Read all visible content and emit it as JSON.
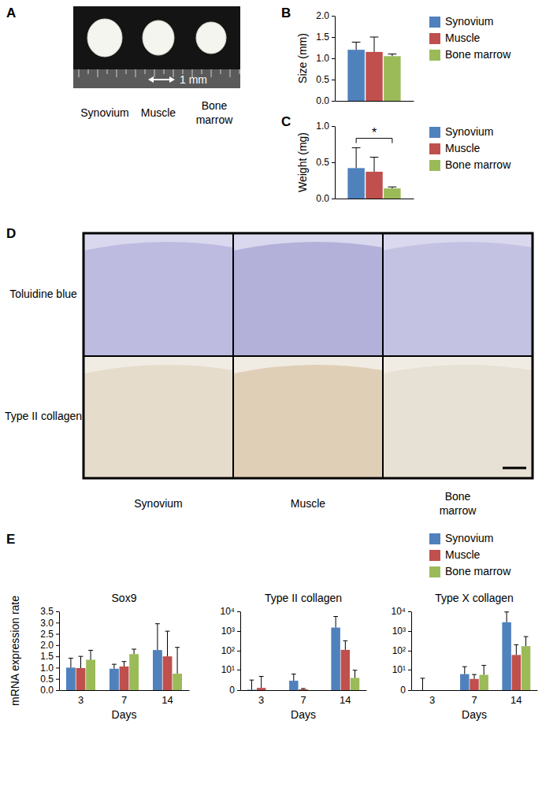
{
  "panel_a": {
    "label": "A",
    "scale_text": "1 mm",
    "samples": [
      "Synovium",
      "Muscle",
      "Bone marrow"
    ]
  },
  "panel_d": {
    "label": "D",
    "stains": [
      "Toluidine blue",
      "Type II collagen"
    ],
    "samples": [
      "Synovium",
      "Muscle",
      "Bone marrow"
    ]
  },
  "chart_data": [
    {
      "label": "B",
      "type": "bar",
      "y_label": "Size (mm)",
      "categories": [
        null
      ],
      "series": [
        {
          "name": "Synovium",
          "color": "#4f81bd",
          "values": [
            1.2
          ],
          "errors": [
            0.18
          ]
        },
        {
          "name": "Muscle",
          "color": "#c0504d",
          "values": [
            1.15
          ],
          "errors": [
            0.35
          ]
        },
        {
          "name": "Bone marrow",
          "color": "#9bbb59",
          "values": [
            1.05
          ],
          "errors": [
            0.05
          ]
        }
      ],
      "ylim": [
        0,
        2
      ],
      "yticks": [
        {
          "value": 0,
          "label": "0.0"
        },
        {
          "value": 0.5,
          "label": "0.5"
        },
        {
          "value": 1,
          "label": "1.0"
        },
        {
          "value": 1.5,
          "label": "1.5"
        },
        {
          "value": 2,
          "label": "2.0"
        }
      ],
      "legend": "right",
      "tick_labels": "y",
      "grid": false
    },
    {
      "label": "C",
      "type": "bar",
      "y_label": "Weight (mg)",
      "categories": [
        null
      ],
      "series": [
        {
          "name": "Synovium",
          "color": "#4f81bd",
          "values": [
            0.42
          ],
          "errors": [
            0.28
          ]
        },
        {
          "name": "Muscle",
          "color": "#c0504d",
          "values": [
            0.37
          ],
          "errors": [
            0.2
          ]
        },
        {
          "name": "Bone marrow",
          "color": "#9bbb59",
          "values": [
            0.14
          ],
          "errors": [
            0.02
          ]
        }
      ],
      "ylim": [
        0,
        1
      ],
      "yticks": [
        {
          "value": 0,
          "label": "0.0"
        },
        {
          "value": 0.5,
          "label": "0.5"
        },
        {
          "value": 1,
          "label": "1.0"
        }
      ],
      "annotations": [
        {
          "text": "*",
          "between": [
            "Synovium",
            "Bone marrow"
          ]
        }
      ],
      "legend": "right",
      "tick_labels": "y",
      "grid": false
    },
    {
      "label": "E",
      "type": "bar",
      "title": "Sox9",
      "y_label": "mRNA expression rate",
      "x_label": "Days",
      "categories": [
        "3",
        "7",
        "14"
      ],
      "series": [
        {
          "name": "Synovium",
          "color": "#4f81bd",
          "values": [
            1.0,
            0.95,
            1.78
          ],
          "errors": [
            0.42,
            0.2,
            1.17
          ]
        },
        {
          "name": "Muscle",
          "color": "#c0504d",
          "values": [
            0.98,
            1.05,
            1.5
          ],
          "errors": [
            0.52,
            0.22,
            1.12
          ]
        },
        {
          "name": "Bone marrow",
          "color": "#9bbb59",
          "values": [
            1.35,
            1.6,
            0.73
          ],
          "errors": [
            0.42,
            0.22,
            1.17
          ]
        }
      ],
      "ylim": [
        0,
        3.5
      ],
      "yticks": [
        {
          "value": 0,
          "label": "0.0"
        },
        {
          "value": 0.5,
          "label": "0.5"
        },
        {
          "value": 1,
          "label": "1.0"
        },
        {
          "value": 1.5,
          "label": "1.5"
        },
        {
          "value": 2,
          "label": "2.0"
        },
        {
          "value": 2.5,
          "label": "2.5"
        },
        {
          "value": 3,
          "label": "3.0"
        },
        {
          "value": 3.5,
          "label": "3.5"
        }
      ],
      "legend": "top right",
      "grid": false
    },
    {
      "type": "bar",
      "title": "Type II collagen",
      "x_label": "Days",
      "categories": [
        "3",
        "7",
        "14"
      ],
      "series": [
        {
          "name": "Synovium",
          "color": "#4f81bd",
          "values": [
            0.05,
            2,
            1500
          ],
          "errors": [
            2.2,
            3.5,
            4000
          ]
        },
        {
          "name": "Muscle",
          "color": "#c0504d",
          "values": [
            0.3,
            0.1,
            110
          ],
          "errors": [
            3.7,
            0.1,
            210
          ]
        },
        {
          "name": "Bone marrow",
          "color": "#9bbb59",
          "values": [
            0,
            0,
            3.2
          ],
          "errors": [
            0,
            0,
            6
          ]
        }
      ],
      "log": "y",
      "ylim": [
        0,
        10000
      ],
      "yticks": [
        0,
        {
          "value": 10,
          "label": "10¹"
        },
        {
          "value": 100,
          "label": "10²"
        },
        {
          "value": 1000,
          "label": "10³"
        },
        {
          "value": 10000,
          "label": "10⁴"
        }
      ],
      "grid": false
    },
    {
      "type": "bar",
      "title": "Type X collagen",
      "x_label": "Days",
      "categories": [
        "3",
        "7",
        "14"
      ],
      "series": [
        {
          "name": "Synovium",
          "color": "#4f81bd",
          "values": [
            0,
            5.5,
            2800
          ],
          "errors": [
            3,
            9,
            6500
          ]
        },
        {
          "name": "Muscle",
          "color": "#c0504d",
          "values": [
            0,
            2.7,
            60
          ],
          "errors": [
            0,
            2.5,
            140
          ]
        },
        {
          "name": "Bone marrow",
          "color": "#9bbb59",
          "values": [
            0,
            5,
            170
          ],
          "errors": [
            0,
            12,
            350
          ]
        }
      ],
      "log": "y",
      "ylim": [
        0,
        10000
      ],
      "yticks": [
        0,
        {
          "value": 10,
          "label": "10¹"
        },
        {
          "value": 100,
          "label": "10²"
        },
        {
          "value": 1000,
          "label": "10³"
        },
        {
          "value": 10000,
          "label": "10⁴"
        }
      ],
      "grid": false
    }
  ]
}
